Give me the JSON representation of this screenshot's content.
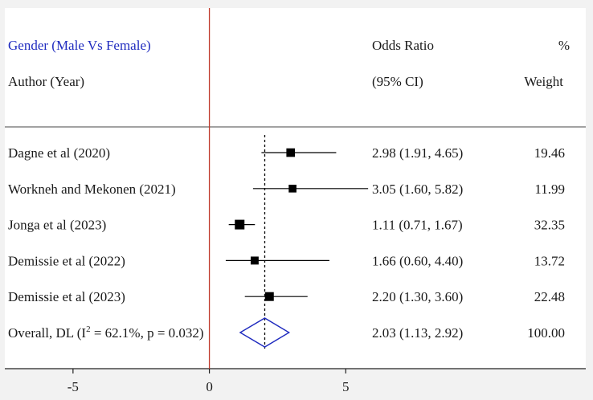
{
  "header": {
    "group_label": "Gender (Male Vs Female)",
    "col_author": "Author (Year)",
    "col_or": "Odds Ratio",
    "col_ci": "(95% CI)",
    "col_pct": "%",
    "col_weight": "Weight"
  },
  "colors": {
    "background": "#f2f2f2",
    "panel": "#ffffff",
    "title": "#1f2bbf",
    "null_line": "#c0392b",
    "diamond": "#1f2bbf",
    "marker": "#000000"
  },
  "chart_data": {
    "type": "forest",
    "effect_measure": "Odds Ratio",
    "xlim": [
      -7.5,
      13.8
    ],
    "null_value": 0,
    "reference_line_value": 2.03,
    "x_ticks": [
      {
        "value": -5,
        "label": "-5"
      },
      {
        "value": 0,
        "label": "0"
      },
      {
        "value": 5,
        "label": "5"
      }
    ],
    "studies": [
      {
        "label": "Dagne et al (2020)",
        "or": 2.98,
        "lower": 1.91,
        "upper": 4.65,
        "text": "2.98 (1.91, 4.65)",
        "weight": 19.46,
        "weight_text": "19.46"
      },
      {
        "label": "Workneh and Mekonen (2021)",
        "or": 3.05,
        "lower": 1.6,
        "upper": 5.82,
        "text": "3.05 (1.60, 5.82)",
        "weight": 11.99,
        "weight_text": "11.99"
      },
      {
        "label": "Jonga  et al (2023)",
        "or": 1.11,
        "lower": 0.71,
        "upper": 1.67,
        "text": "1.11 (0.71, 1.67)",
        "weight": 32.35,
        "weight_text": "32.35"
      },
      {
        "label": "Demissie et al (2022)",
        "or": 1.66,
        "lower": 0.6,
        "upper": 4.4,
        "text": "1.66 (0.60, 4.40)",
        "weight": 13.72,
        "weight_text": "13.72"
      },
      {
        "label": "Demissie et al (2023)",
        "or": 2.2,
        "lower": 1.3,
        "upper": 3.6,
        "text": "2.20 (1.30, 3.60)",
        "weight": 22.48,
        "weight_text": "22.48"
      }
    ],
    "overall": {
      "label_prefix": "Overall, DL (I",
      "label_sup": "2",
      "label_suffix": " = 62.1%, p = 0.032)",
      "or": 2.03,
      "lower": 1.13,
      "upper": 2.92,
      "text": "2.03 (1.13, 2.92)",
      "weight_text": "100.00"
    }
  }
}
